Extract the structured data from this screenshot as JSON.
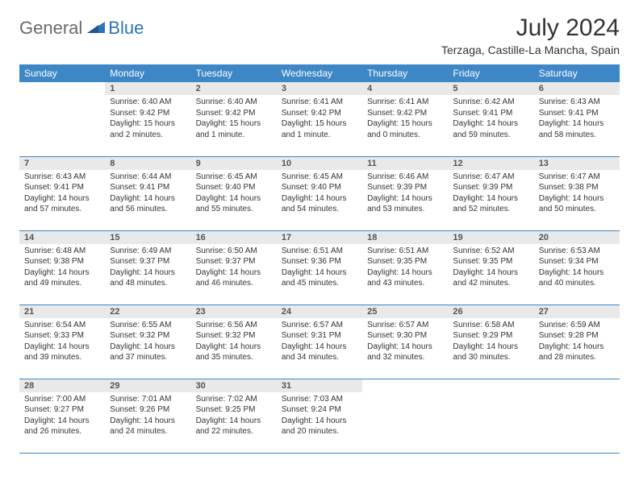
{
  "logo": {
    "general": "General",
    "blue": "Blue"
  },
  "title": "July 2024",
  "location": "Terzaga, Castille-La Mancha, Spain",
  "colors": {
    "header_bg": "#3d87c7",
    "header_text": "#ffffff",
    "daynum_bg": "#e9e9e9",
    "border": "#3d87c7",
    "logo_gray": "#6a6a6a",
    "logo_blue": "#2d73b9"
  },
  "weekdays": [
    "Sunday",
    "Monday",
    "Tuesday",
    "Wednesday",
    "Thursday",
    "Friday",
    "Saturday"
  ],
  "weeks": [
    [
      null,
      {
        "n": "1",
        "sr": "Sunrise: 6:40 AM",
        "ss": "Sunset: 9:42 PM",
        "dl1": "Daylight: 15 hours",
        "dl2": "and 2 minutes."
      },
      {
        "n": "2",
        "sr": "Sunrise: 6:40 AM",
        "ss": "Sunset: 9:42 PM",
        "dl1": "Daylight: 15 hours",
        "dl2": "and 1 minute."
      },
      {
        "n": "3",
        "sr": "Sunrise: 6:41 AM",
        "ss": "Sunset: 9:42 PM",
        "dl1": "Daylight: 15 hours",
        "dl2": "and 1 minute."
      },
      {
        "n": "4",
        "sr": "Sunrise: 6:41 AM",
        "ss": "Sunset: 9:42 PM",
        "dl1": "Daylight: 15 hours",
        "dl2": "and 0 minutes."
      },
      {
        "n": "5",
        "sr": "Sunrise: 6:42 AM",
        "ss": "Sunset: 9:41 PM",
        "dl1": "Daylight: 14 hours",
        "dl2": "and 59 minutes."
      },
      {
        "n": "6",
        "sr": "Sunrise: 6:43 AM",
        "ss": "Sunset: 9:41 PM",
        "dl1": "Daylight: 14 hours",
        "dl2": "and 58 minutes."
      }
    ],
    [
      {
        "n": "7",
        "sr": "Sunrise: 6:43 AM",
        "ss": "Sunset: 9:41 PM",
        "dl1": "Daylight: 14 hours",
        "dl2": "and 57 minutes."
      },
      {
        "n": "8",
        "sr": "Sunrise: 6:44 AM",
        "ss": "Sunset: 9:41 PM",
        "dl1": "Daylight: 14 hours",
        "dl2": "and 56 minutes."
      },
      {
        "n": "9",
        "sr": "Sunrise: 6:45 AM",
        "ss": "Sunset: 9:40 PM",
        "dl1": "Daylight: 14 hours",
        "dl2": "and 55 minutes."
      },
      {
        "n": "10",
        "sr": "Sunrise: 6:45 AM",
        "ss": "Sunset: 9:40 PM",
        "dl1": "Daylight: 14 hours",
        "dl2": "and 54 minutes."
      },
      {
        "n": "11",
        "sr": "Sunrise: 6:46 AM",
        "ss": "Sunset: 9:39 PM",
        "dl1": "Daylight: 14 hours",
        "dl2": "and 53 minutes."
      },
      {
        "n": "12",
        "sr": "Sunrise: 6:47 AM",
        "ss": "Sunset: 9:39 PM",
        "dl1": "Daylight: 14 hours",
        "dl2": "and 52 minutes."
      },
      {
        "n": "13",
        "sr": "Sunrise: 6:47 AM",
        "ss": "Sunset: 9:38 PM",
        "dl1": "Daylight: 14 hours",
        "dl2": "and 50 minutes."
      }
    ],
    [
      {
        "n": "14",
        "sr": "Sunrise: 6:48 AM",
        "ss": "Sunset: 9:38 PM",
        "dl1": "Daylight: 14 hours",
        "dl2": "and 49 minutes."
      },
      {
        "n": "15",
        "sr": "Sunrise: 6:49 AM",
        "ss": "Sunset: 9:37 PM",
        "dl1": "Daylight: 14 hours",
        "dl2": "and 48 minutes."
      },
      {
        "n": "16",
        "sr": "Sunrise: 6:50 AM",
        "ss": "Sunset: 9:37 PM",
        "dl1": "Daylight: 14 hours",
        "dl2": "and 46 minutes."
      },
      {
        "n": "17",
        "sr": "Sunrise: 6:51 AM",
        "ss": "Sunset: 9:36 PM",
        "dl1": "Daylight: 14 hours",
        "dl2": "and 45 minutes."
      },
      {
        "n": "18",
        "sr": "Sunrise: 6:51 AM",
        "ss": "Sunset: 9:35 PM",
        "dl1": "Daylight: 14 hours",
        "dl2": "and 43 minutes."
      },
      {
        "n": "19",
        "sr": "Sunrise: 6:52 AM",
        "ss": "Sunset: 9:35 PM",
        "dl1": "Daylight: 14 hours",
        "dl2": "and 42 minutes."
      },
      {
        "n": "20",
        "sr": "Sunrise: 6:53 AM",
        "ss": "Sunset: 9:34 PM",
        "dl1": "Daylight: 14 hours",
        "dl2": "and 40 minutes."
      }
    ],
    [
      {
        "n": "21",
        "sr": "Sunrise: 6:54 AM",
        "ss": "Sunset: 9:33 PM",
        "dl1": "Daylight: 14 hours",
        "dl2": "and 39 minutes."
      },
      {
        "n": "22",
        "sr": "Sunrise: 6:55 AM",
        "ss": "Sunset: 9:32 PM",
        "dl1": "Daylight: 14 hours",
        "dl2": "and 37 minutes."
      },
      {
        "n": "23",
        "sr": "Sunrise: 6:56 AM",
        "ss": "Sunset: 9:32 PM",
        "dl1": "Daylight: 14 hours",
        "dl2": "and 35 minutes."
      },
      {
        "n": "24",
        "sr": "Sunrise: 6:57 AM",
        "ss": "Sunset: 9:31 PM",
        "dl1": "Daylight: 14 hours",
        "dl2": "and 34 minutes."
      },
      {
        "n": "25",
        "sr": "Sunrise: 6:57 AM",
        "ss": "Sunset: 9:30 PM",
        "dl1": "Daylight: 14 hours",
        "dl2": "and 32 minutes."
      },
      {
        "n": "26",
        "sr": "Sunrise: 6:58 AM",
        "ss": "Sunset: 9:29 PM",
        "dl1": "Daylight: 14 hours",
        "dl2": "and 30 minutes."
      },
      {
        "n": "27",
        "sr": "Sunrise: 6:59 AM",
        "ss": "Sunset: 9:28 PM",
        "dl1": "Daylight: 14 hours",
        "dl2": "and 28 minutes."
      }
    ],
    [
      {
        "n": "28",
        "sr": "Sunrise: 7:00 AM",
        "ss": "Sunset: 9:27 PM",
        "dl1": "Daylight: 14 hours",
        "dl2": "and 26 minutes."
      },
      {
        "n": "29",
        "sr": "Sunrise: 7:01 AM",
        "ss": "Sunset: 9:26 PM",
        "dl1": "Daylight: 14 hours",
        "dl2": "and 24 minutes."
      },
      {
        "n": "30",
        "sr": "Sunrise: 7:02 AM",
        "ss": "Sunset: 9:25 PM",
        "dl1": "Daylight: 14 hours",
        "dl2": "and 22 minutes."
      },
      {
        "n": "31",
        "sr": "Sunrise: 7:03 AM",
        "ss": "Sunset: 9:24 PM",
        "dl1": "Daylight: 14 hours",
        "dl2": "and 20 minutes."
      },
      null,
      null,
      null
    ]
  ]
}
